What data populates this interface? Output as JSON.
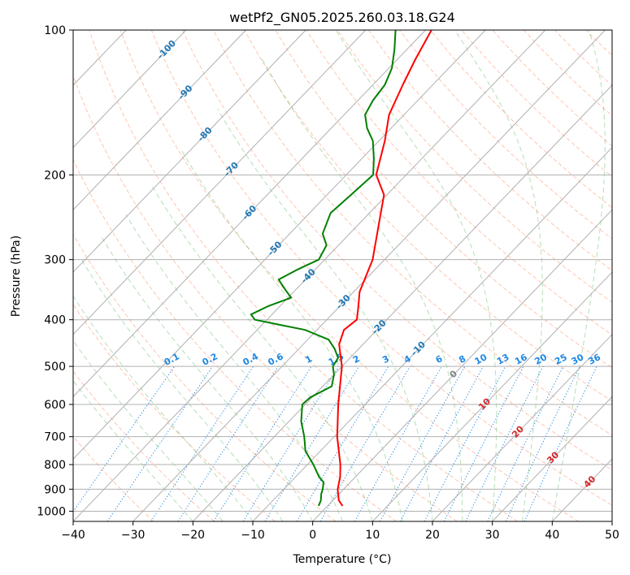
{
  "chart_data": {
    "type": "skew-t",
    "title": "wetPf2_GN05.2025.260.03.18.G24",
    "xlabel": "Temperature (°C)",
    "ylabel": "Pressure (hPa)",
    "xlim": [
      -40,
      50
    ],
    "ylim": [
      1050,
      100
    ],
    "x_ticks": [
      "−40",
      "−30",
      "−20",
      "−10",
      "0",
      "10",
      "20",
      "30",
      "40",
      "50"
    ],
    "y_ticks": [
      "100",
      "200",
      "300",
      "400",
      "500",
      "600",
      "700",
      "800",
      "900",
      "1000"
    ],
    "grid": true,
    "series": [
      {
        "color": "#ff0000",
        "points": [
          {
            "p": 975,
            "t": 2.5
          },
          {
            "p": 950,
            "t": 1.0
          },
          {
            "p": 900,
            "t": -1.0
          },
          {
            "p": 850,
            "t": -2.5
          },
          {
            "p": 800,
            "t": -4.5
          },
          {
            "p": 700,
            "t": -9.5
          },
          {
            "p": 600,
            "t": -14.5
          },
          {
            "p": 500,
            "t": -20.0
          },
          {
            "p": 450,
            "t": -24.0
          },
          {
            "p": 420,
            "t": -25.5
          },
          {
            "p": 400,
            "t": -25.0
          },
          {
            "p": 380,
            "t": -26.5
          },
          {
            "p": 350,
            "t": -29.0
          },
          {
            "p": 300,
            "t": -32.0
          },
          {
            "p": 250,
            "t": -37.0
          },
          {
            "p": 220,
            "t": -40.5
          },
          {
            "p": 200,
            "t": -45.0
          },
          {
            "p": 170,
            "t": -49.0
          },
          {
            "p": 150,
            "t": -52.5
          },
          {
            "p": 130,
            "t": -55.0
          },
          {
            "p": 115,
            "t": -57.0
          },
          {
            "p": 100,
            "t": -59.0
          }
        ]
      },
      {
        "color": "#008000",
        "points": [
          {
            "p": 975,
            "t": -1.5
          },
          {
            "p": 950,
            "t": -2.0
          },
          {
            "p": 920,
            "t": -3.0
          },
          {
            "p": 900,
            "t": -3.5
          },
          {
            "p": 870,
            "t": -4.5
          },
          {
            "p": 850,
            "t": -6.0
          },
          {
            "p": 800,
            "t": -9.0
          },
          {
            "p": 750,
            "t": -12.5
          },
          {
            "p": 700,
            "t": -15.0
          },
          {
            "p": 650,
            "t": -18.0
          },
          {
            "p": 600,
            "t": -20.5
          },
          {
            "p": 580,
            "t": -20.3
          },
          {
            "p": 550,
            "t": -18.5
          },
          {
            "p": 520,
            "t": -20.0
          },
          {
            "p": 500,
            "t": -21.5
          },
          {
            "p": 480,
            "t": -22.0
          },
          {
            "p": 460,
            "t": -24.0
          },
          {
            "p": 440,
            "t": -26.5
          },
          {
            "p": 420,
            "t": -32.0
          },
          {
            "p": 410,
            "t": -37.0
          },
          {
            "p": 400,
            "t": -42.0
          },
          {
            "p": 390,
            "t": -43.5
          },
          {
            "p": 375,
            "t": -42.0
          },
          {
            "p": 360,
            "t": -39.5
          },
          {
            "p": 345,
            "t": -42.0
          },
          {
            "p": 330,
            "t": -44.5
          },
          {
            "p": 315,
            "t": -43.0
          },
          {
            "p": 300,
            "t": -41.0
          },
          {
            "p": 280,
            "t": -42.0
          },
          {
            "p": 265,
            "t": -44.5
          },
          {
            "p": 240,
            "t": -46.5
          },
          {
            "p": 220,
            "t": -46.0
          },
          {
            "p": 200,
            "t": -45.5
          },
          {
            "p": 185,
            "t": -48.0
          },
          {
            "p": 170,
            "t": -51.0
          },
          {
            "p": 160,
            "t": -54.0
          },
          {
            "p": 150,
            "t": -56.5
          },
          {
            "p": 140,
            "t": -57.5
          },
          {
            "p": 130,
            "t": -58.0
          },
          {
            "p": 120,
            "t": -59.5
          },
          {
            "p": 110,
            "t": -62.0
          },
          {
            "p": 100,
            "t": -65.0
          }
        ]
      }
    ],
    "isotherm_labels": [
      {
        "text": "-100",
        "p": 110
      },
      {
        "text": "-90",
        "p": 135
      },
      {
        "text": "-80",
        "p": 165
      },
      {
        "text": "-70",
        "p": 195
      },
      {
        "text": "-60",
        "p": 240
      },
      {
        "text": "-50",
        "p": 285
      },
      {
        "text": "-40",
        "p": 325
      },
      {
        "text": "-30",
        "p": 368
      },
      {
        "text": "-20",
        "p": 415
      },
      {
        "text": "-10",
        "p": 460
      },
      {
        "text": "0",
        "p": 520
      }
    ],
    "warm_isotherm_labels": [
      {
        "text": "10",
        "t": 10,
        "p": 600
      },
      {
        "text": "20",
        "t": 20,
        "p": 685
      },
      {
        "text": "30",
        "t": 30,
        "p": 775
      },
      {
        "text": "40",
        "t": 40,
        "p": 870
      }
    ],
    "mixing_ratio_labels": [
      "0.1",
      "0.2",
      "0.4",
      "0.6",
      "1",
      "1.5",
      "2",
      "3",
      "4",
      "6",
      "8",
      "10",
      "13",
      "16",
      "20",
      "25",
      "30",
      "36"
    ],
    "colors": {
      "temperature": "#ff0000",
      "dewpoint": "#008000",
      "isotherm_label": "#1f77b4",
      "mixing_ratio": "#1e88e5",
      "warm_isotherm_label": "#d62728",
      "zero_label": "#7f7f7f",
      "dry_adiabat": "#ff7f50",
      "moist_adiabat": "#2ca02c"
    }
  }
}
